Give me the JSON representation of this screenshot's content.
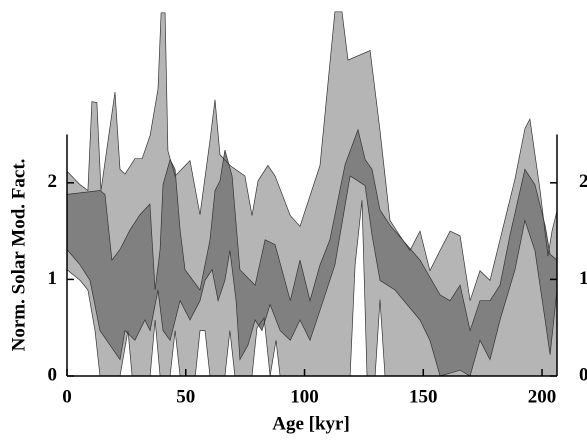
{
  "chart_data": {
    "type": "band",
    "x_label": "Age [kyr]",
    "y_label": "Norm. Solar Mod. Fact.",
    "xlim": [
      0,
      206.3
    ],
    "ylim": [
      0,
      3.82
    ],
    "xticks": [
      0,
      50,
      100,
      150,
      200
    ],
    "yticks": [
      0,
      1,
      2
    ],
    "bands": [
      {
        "color": "#b5b5b5",
        "upper": {
          "x": [
            0,
            5.5,
            8.8,
            10.5,
            12.6,
            14.3,
            17.3,
            20.2,
            22.3,
            24.4,
            28.6,
            31.6,
            35,
            38.3,
            39.6,
            41.3,
            42.5,
            45.5,
            51.8,
            56,
            60.2,
            62.3,
            64.4,
            68.6,
            74.9,
            77.9,
            80.4,
            84.6,
            87.6,
            94,
            98.1,
            106.5,
            112.8,
            115.8,
            118.3,
            127.6,
            131.8,
            136,
            140.2,
            144.4,
            148.6,
            152.8,
            157.1,
            161.3,
            165.5,
            169.7,
            173.9,
            178.1,
            182.3,
            188.6,
            192.8,
            194.9,
            199.2,
            202.5,
            204.2,
            206.3
          ],
          "values": [
            2.12,
            1.98,
            1.92,
            2.84,
            2.83,
            1.92,
            2.44,
            2.94,
            2.14,
            2.09,
            2.25,
            2.25,
            2.49,
            2.97,
            3.76,
            3.76,
            2.33,
            2.07,
            2.23,
            1.67,
            2.44,
            2.86,
            2.29,
            2.18,
            2.07,
            1.66,
            2.02,
            2.18,
            2.07,
            1.66,
            1.55,
            2.18,
            3.77,
            3.77,
            3.27,
            3.37,
            2.54,
            1.61,
            1.45,
            1.3,
            1.5,
            1.09,
            1.3,
            1.5,
            1.45,
            0.78,
            1.09,
            0.99,
            1.41,
            2.04,
            2.56,
            2.66,
            1.92,
            1.24,
            1.5,
            1.71
          ]
        },
        "lower": {
          "x": [
            0,
            5.5,
            8.8,
            11.8,
            13.9,
            22.3,
            25.7,
            27.4,
            35,
            37.1,
            39.2,
            43.4,
            45.5,
            47.6,
            54,
            56,
            58.1,
            60.2,
            66.5,
            68.6,
            70.7,
            77.9,
            80,
            83,
            85.5,
            88,
            89.7,
            119.2,
            121.3,
            124.2,
            126.3,
            129.7,
            131.8,
            133.9,
            206.3
          ],
          "values": [
            1.1,
            0.99,
            0.89,
            0.47,
            0,
            0,
            0.47,
            0,
            0,
            0.58,
            0,
            0,
            0.47,
            0,
            0,
            0.47,
            0.47,
            0,
            0,
            0.47,
            0,
            0,
            0.5,
            0.6,
            0,
            0.37,
            0,
            0,
            1.15,
            1.82,
            0,
            0,
            0.79,
            0,
            0
          ]
        }
      },
      {
        "color": "#808080",
        "upper": {
          "x": [
            0,
            13.9,
            16,
            18.9,
            22.3,
            26.5,
            30.7,
            34.9,
            37.1,
            39.2,
            40.4,
            43.4,
            45.5,
            47.6,
            49.7,
            56,
            60.2,
            62.3,
            64.4,
            66.5,
            69.5,
            72.8,
            79.2,
            83.4,
            87.6,
            94,
            98.1,
            102.3,
            106.5,
            110.7,
            117.1,
            122.5,
            125.5,
            128.4,
            131.8,
            136,
            148.6,
            157.1,
            161.3,
            165.5,
            169.7,
            173.9,
            178.1,
            182.3,
            186.5,
            192.8,
            197,
            201.3,
            203.4,
            206.3
          ],
          "values": [
            1.88,
            1.92,
            1.88,
            1.2,
            1.31,
            1.51,
            1.67,
            1.78,
            0.89,
            1.31,
            1.98,
            2.24,
            2.14,
            1.51,
            1.1,
            0.89,
            1.41,
            1.92,
            2.02,
            2.34,
            2.07,
            1.1,
            0.94,
            1.41,
            1.36,
            0.78,
            1.2,
            0.78,
            1.15,
            1.41,
            2.19,
            2.55,
            2.24,
            2.14,
            1.72,
            1.56,
            1.2,
            0.84,
            0.78,
            0.94,
            0.47,
            0.78,
            0.78,
            0.94,
            1.46,
            2.14,
            1.98,
            1.56,
            1.26,
            1.2
          ]
        },
        "lower": {
          "x": [
            0,
            5.5,
            9.7,
            13.9,
            18.1,
            22.3,
            24.4,
            28.6,
            32.8,
            35,
            38.3,
            40.4,
            43.4,
            47.6,
            51.8,
            56,
            58.1,
            61.1,
            63.6,
            66.5,
            68.6,
            71.2,
            72.8,
            76.2,
            79.2,
            82.1,
            85.5,
            89.7,
            94,
            98.1,
            102.3,
            106.5,
            112.8,
            119.2,
            122.5,
            125.5,
            128.4,
            131.8,
            138.1,
            148.6,
            152.8,
            157.1,
            165.5,
            169.7,
            173.9,
            178.1,
            182.3,
            188.6,
            192.8,
            197,
            201.3,
            203.4,
            206.3
          ],
          "values": [
            1.31,
            1.15,
            0.99,
            0.47,
            0.32,
            0.17,
            0.47,
            0.37,
            0.58,
            0.47,
            0.89,
            0.47,
            0.37,
            0.78,
            0.58,
            0.78,
            0.99,
            1.1,
            0.78,
            0.99,
            1.3,
            0.78,
            0.17,
            0.32,
            0.58,
            0.47,
            0.74,
            0.47,
            0.37,
            0.58,
            0.37,
            0.68,
            1.15,
            2.07,
            2.02,
            1.97,
            1.46,
            0.99,
            0.89,
            0.58,
            0.37,
            0,
            0.06,
            0,
            0.37,
            0.17,
            0.58,
            1.1,
            1.61,
            1.3,
            0.58,
            0.22,
            0.89
          ]
        }
      }
    ]
  }
}
